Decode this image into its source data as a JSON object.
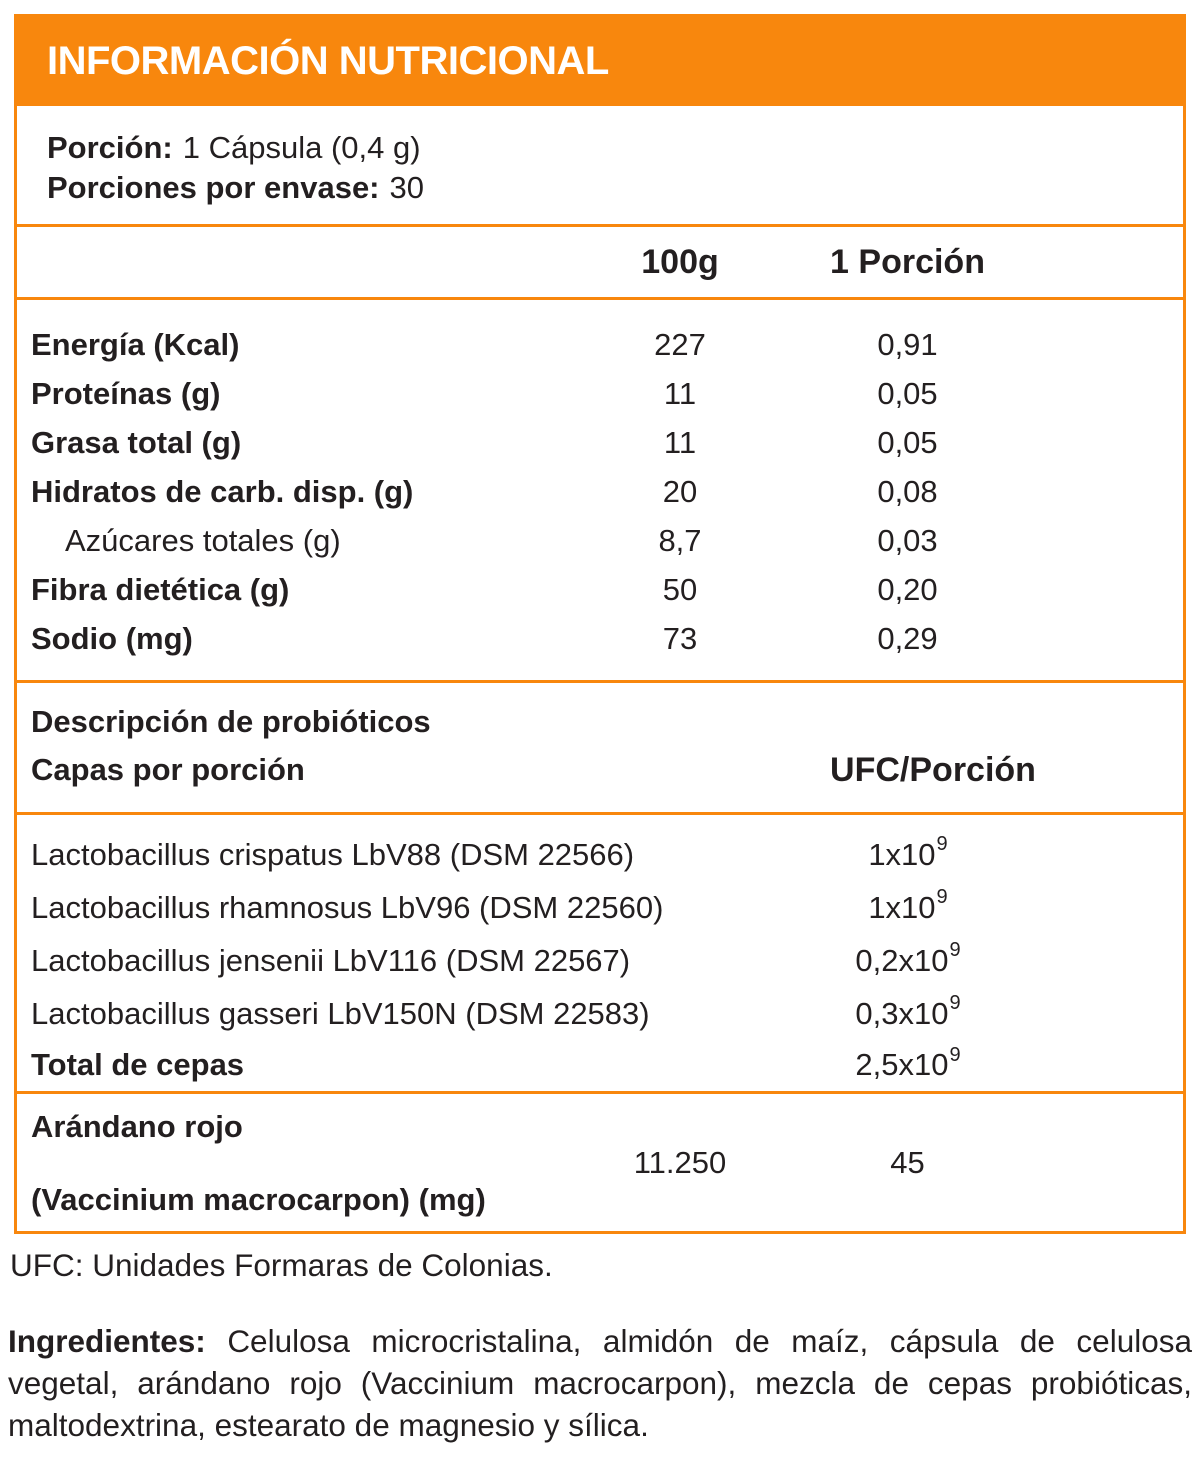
{
  "colors": {
    "accent_orange": "#F8870D",
    "text_dark": "#231F20",
    "header_text": "#FFFFFF"
  },
  "header": {
    "title": "INFORMACIÓN NUTRICIONAL"
  },
  "serving": {
    "portion_label": "Porción:",
    "portion_value": "1 Cápsula (0,4 g)",
    "servings_label": "Porciones por envase:",
    "servings_value": "30"
  },
  "columns": {
    "per_100g": "100g",
    "per_serving": "1 Porción"
  },
  "nutrients": [
    {
      "label": "Energía (Kcal)",
      "per_100g": "227",
      "per_serving": "0,91"
    },
    {
      "label": "Proteínas (g)",
      "per_100g": "11",
      "per_serving": "0,05"
    },
    {
      "label": "Grasa total (g)",
      "per_100g": "11",
      "per_serving": "0,05"
    },
    {
      "label": "Hidratos de carb. disp. (g)",
      "per_100g": "20",
      "per_serving": "0,08"
    },
    {
      "label": "Azúcares totales (g)",
      "per_100g": "8,7",
      "per_serving": "0,03"
    },
    {
      "label": "Fibra dietética (g)",
      "per_100g": "50",
      "per_serving": "0,20"
    },
    {
      "label": "Sodio (mg)",
      "per_100g": "73",
      "per_serving": "0,29"
    }
  ],
  "probiotics": {
    "section_title": "Descripción de probióticos",
    "rows_label": "Capas por porción",
    "column_header": "UFC/Porción",
    "rows": [
      {
        "label": "Lactobacillus crispatus LbV88 (DSM 22566)",
        "value_base": "1x10",
        "value_exp": "9"
      },
      {
        "label": "Lactobacillus rhamnosus LbV96 (DSM 22560)",
        "value_base": "1x10",
        "value_exp": "9"
      },
      {
        "label": "Lactobacillus jensenii LbV116 (DSM 22567)",
        "value_base": "0,2x10",
        "value_exp": "9"
      },
      {
        "label": "Lactobacillus gasseri LbV150N (DSM 22583)",
        "value_base": "0,3x10",
        "value_exp": "9"
      },
      {
        "label": "Total de cepas",
        "value_base": "2,5x10",
        "value_exp": "9"
      }
    ]
  },
  "cranberry": {
    "name": "Arándano rojo",
    "detail": "(Vaccinium macrocarpon) (mg)",
    "per_100g": "11.250",
    "per_serving": "45"
  },
  "footnote": "UFC: Unidades Formaras de Colonias.",
  "ingredients": {
    "label": "Ingredientes:",
    "text": "Celulosa microcristalina, almidón de maíz, cápsula de celulosa vegetal, arándano rojo (Vaccinium macrocarpon), mezcla de cepas probióticas, maltodextrina, estearato de magnesio y sílica."
  }
}
